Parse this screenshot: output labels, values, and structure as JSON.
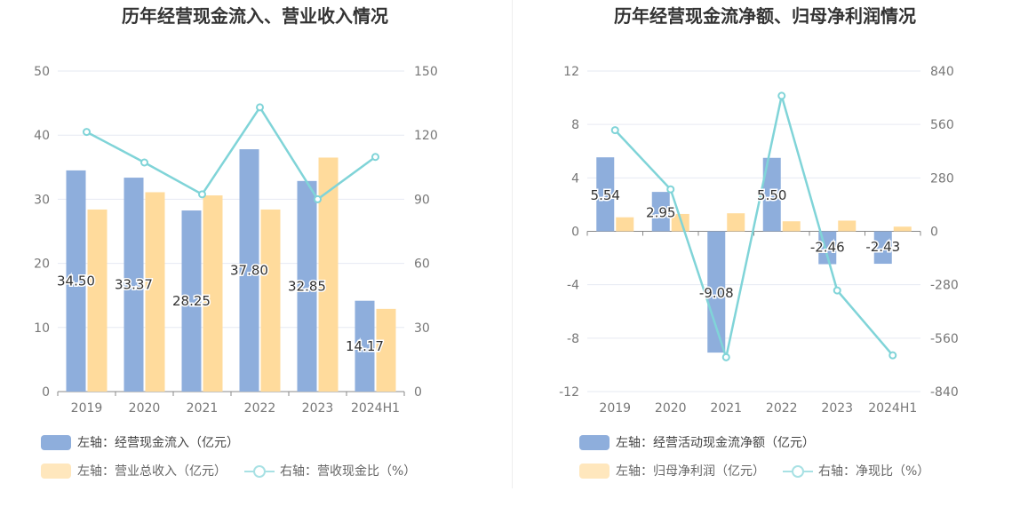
{
  "chart_data": [
    {
      "type": "bar",
      "title": "历年经营现金流入、营业收入情况",
      "categories": [
        "2019",
        "2020",
        "2021",
        "2022",
        "2023",
        "2024H1"
      ],
      "left_axis": {
        "min": 0,
        "max": 50,
        "ticks": [
          "50",
          "40",
          "30",
          "20",
          "10",
          "0"
        ]
      },
      "right_axis": {
        "min": 0,
        "max": 150,
        "ticks": [
          "150",
          "120",
          "90",
          "60",
          "30",
          "0"
        ]
      },
      "series": [
        {
          "name": "左轴：经营现金流入（亿元）",
          "axis": "left",
          "kind": "bar",
          "color": "#8eaedc",
          "values": [
            34.5,
            33.37,
            28.25,
            37.8,
            32.85,
            14.17
          ],
          "labels": [
            "34.50",
            "33.37",
            "28.25",
            "37.80",
            "32.85",
            "14.17"
          ]
        },
        {
          "name": "左轴：营业总收入（亿元）",
          "axis": "left",
          "kind": "bar",
          "color": "#ffdb9c",
          "values": [
            28.4,
            31.1,
            30.6,
            28.4,
            36.5,
            12.9
          ]
        },
        {
          "name": "右轴：营收现金比（%）",
          "axis": "right",
          "kind": "line",
          "color": "#80d4d8",
          "values": [
            121.5,
            107.2,
            92.3,
            133.0,
            90.0,
            109.8
          ]
        }
      ]
    },
    {
      "type": "bar",
      "title": "历年经营现金流净额、归母净利润情况",
      "categories": [
        "2019",
        "2020",
        "2021",
        "2022",
        "2023",
        "2024H1"
      ],
      "left_axis": {
        "min": -12,
        "max": 12,
        "ticks": [
          "12",
          "8",
          "4",
          "0",
          "-4",
          "-8",
          "-12"
        ]
      },
      "right_axis": {
        "min": -840,
        "max": 840,
        "ticks": [
          "840",
          "560",
          "280",
          "0",
          "-280",
          "-560",
          "-840"
        ]
      },
      "series": [
        {
          "name": "左轴：经营活动现金流净额（亿元）",
          "axis": "left",
          "kind": "bar",
          "color": "#8eaedc",
          "values": [
            5.54,
            2.95,
            -9.08,
            5.5,
            -2.46,
            -2.43
          ],
          "labels": [
            "5.54",
            "2.95",
            "-9.08",
            "5.50",
            "-2.46",
            "-2.43"
          ]
        },
        {
          "name": "左轴：归母净利润（亿元）",
          "axis": "left",
          "kind": "bar",
          "color": "#ffdb9c",
          "values": [
            1.05,
            1.3,
            1.35,
            0.75,
            0.8,
            0.35
          ]
        },
        {
          "name": "右轴：净现比（%）",
          "axis": "right",
          "kind": "line",
          "color": "#80d4d8",
          "values": [
            530,
            220,
            -660,
            710,
            -310,
            -650
          ]
        }
      ]
    }
  ]
}
